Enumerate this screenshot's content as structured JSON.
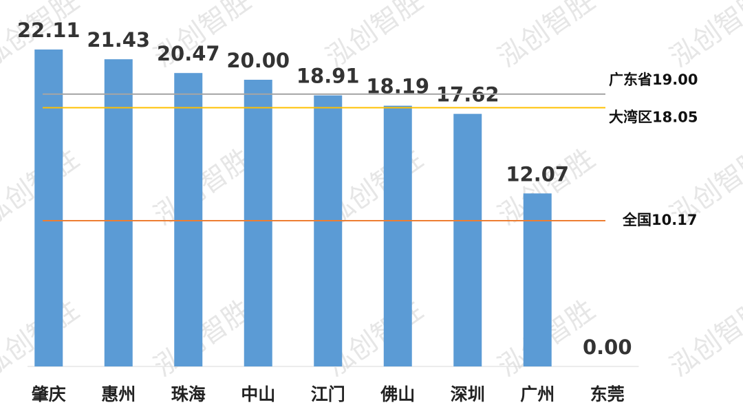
{
  "chart_data": {
    "type": "bar",
    "categories": [
      "肇庆",
      "惠州",
      "珠海",
      "中山",
      "江门",
      "佛山",
      "深圳",
      "广州",
      "东莞"
    ],
    "values": [
      22.11,
      21.43,
      20.47,
      20.0,
      18.91,
      18.19,
      17.62,
      12.07,
      0.0
    ],
    "value_labels": [
      "22.11",
      "21.43",
      "20.47",
      "20.00",
      "18.91",
      "18.19",
      "17.62",
      "12.07",
      "0.00"
    ],
    "color": "#5b9bd5",
    "ylim": [
      0,
      24
    ],
    "reference_lines": [
      {
        "label": "广东省19.00",
        "value": 19.0,
        "color": "#a5a5a5"
      },
      {
        "label": "大湾区18.05",
        "value": 18.05,
        "color": "#ffc000"
      },
      {
        "label": "全国10.17",
        "value": 10.17,
        "color": "#ed7d31"
      }
    ],
    "watermark": "泓创智胜"
  }
}
